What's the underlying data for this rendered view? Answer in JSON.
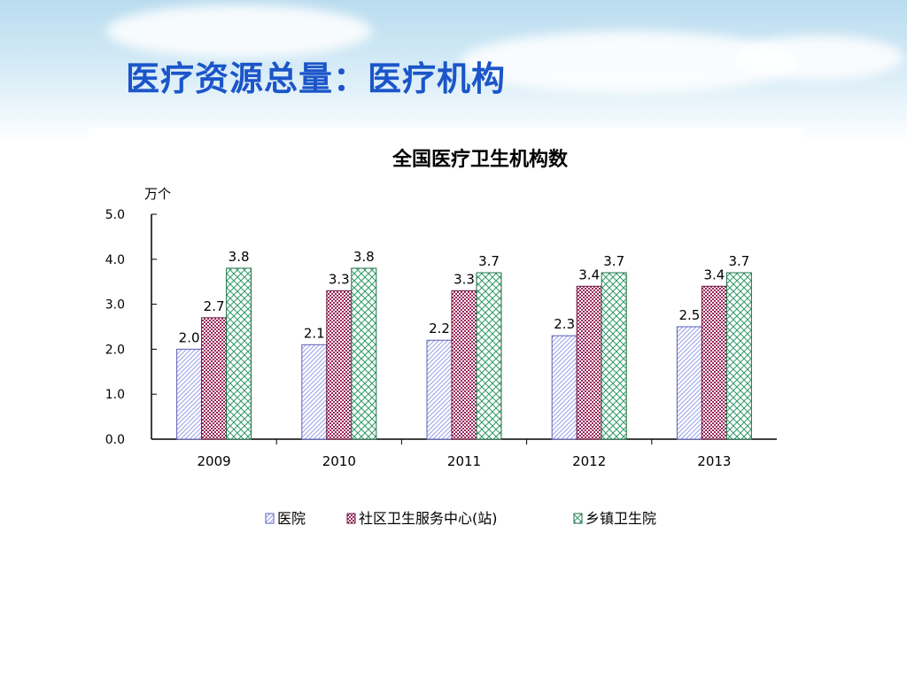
{
  "slide": {
    "title": "医疗资源总量：医疗机构"
  },
  "chart_data": {
    "type": "bar",
    "title": "全国医疗卫生机构数",
    "ylabel": "万个",
    "xlabel": "",
    "categories": [
      "2009",
      "2010",
      "2011",
      "2012",
      "2013"
    ],
    "ylim": [
      0,
      5
    ],
    "yticks": [
      "0.0",
      "1.0",
      "2.0",
      "3.0",
      "4.0",
      "5.0"
    ],
    "series": [
      {
        "name": "医院",
        "values": [
          2.0,
          2.1,
          2.2,
          2.3,
          2.5
        ],
        "labels": [
          "2.0",
          "2.1",
          "2.2",
          "2.3",
          "2.5"
        ],
        "color": "#9aa0e8",
        "pattern": "diag-lines"
      },
      {
        "name": "社区卫生服务中心(站)",
        "values": [
          2.7,
          3.3,
          3.3,
          3.4,
          3.4
        ],
        "labels": [
          "2.7",
          "3.3",
          "3.3",
          "3.4",
          "3.4"
        ],
        "color": "#9b2459",
        "pattern": "checker"
      },
      {
        "name": "乡镇卫生院",
        "values": [
          3.8,
          3.8,
          3.7,
          3.7,
          3.7
        ],
        "labels": [
          "3.8",
          "3.8",
          "3.7",
          "3.7",
          "3.7"
        ],
        "color": "#2e9a66",
        "pattern": "crosshatch"
      }
    ],
    "legend": "bottom",
    "grid": false
  }
}
